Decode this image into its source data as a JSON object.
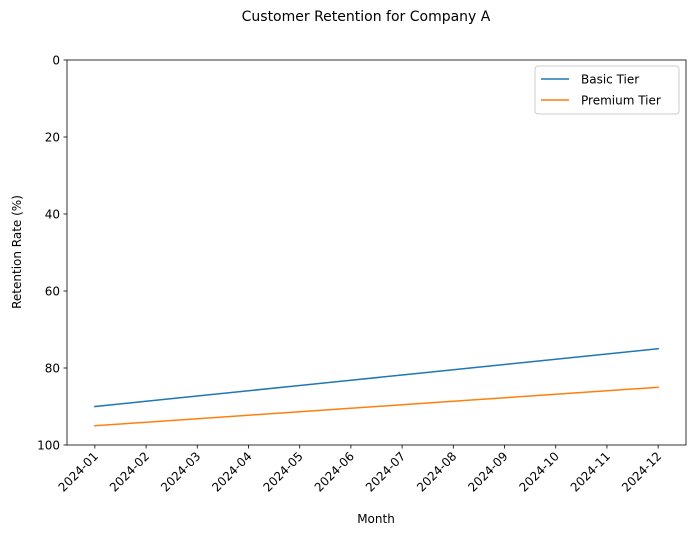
{
  "chart_data": {
    "type": "line",
    "title": "Customer Retention for Company A",
    "xlabel": "Month",
    "ylabel": "Retention Rate (%)",
    "x": [
      "2024-01",
      "2024-02",
      "2024-03",
      "2024-04",
      "2024-05",
      "2024-06",
      "2024-07",
      "2024-08",
      "2024-09",
      "2024-10",
      "2024-11",
      "2024-12"
    ],
    "series": [
      {
        "name": "Basic Tier",
        "color": "#1f77b4",
        "values": [
          90.0,
          88.64,
          87.27,
          85.91,
          84.55,
          83.18,
          81.82,
          80.45,
          79.09,
          77.73,
          76.36,
          75.0
        ]
      },
      {
        "name": "Premium Tier",
        "color": "#ff7f0e",
        "values": [
          95.0,
          94.09,
          93.18,
          92.27,
          91.36,
          90.45,
          89.55,
          88.64,
          87.73,
          86.82,
          85.91,
          85.0
        ]
      }
    ],
    "ylim": [
      100,
      0
    ],
    "y_inverted": true,
    "yticks": [
      0,
      20,
      40,
      60,
      80,
      100
    ],
    "grid": false,
    "legend_position": "upper right"
  }
}
